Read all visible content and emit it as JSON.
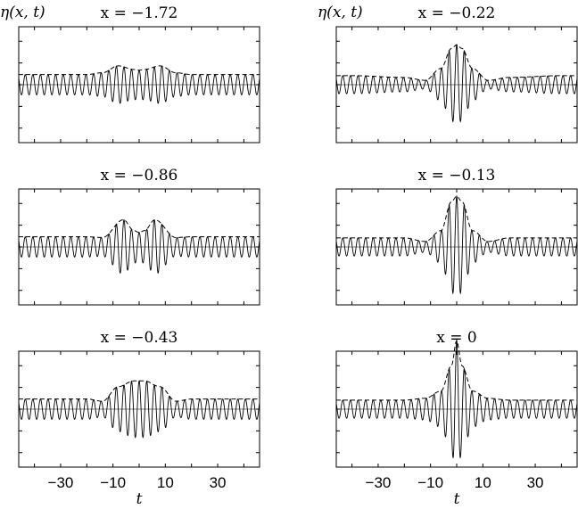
{
  "chart_data": {
    "type": "line",
    "ylabel": "η(x, t)",
    "xlabel": "t",
    "x_ticks": [
      -30,
      -10,
      10,
      30
    ],
    "xlim": [
      -46,
      46
    ],
    "ylim": [
      -1.6,
      1.6
    ],
    "series_styles": [
      "solid line: η(x, t)",
      "dashed line: envelope"
    ],
    "panels": [
      {
        "title": "x = −1.72",
        "x_value": -1.72,
        "column": "left",
        "row": 1,
        "envelope_amplitudes_at": {
          "t": [
            -40,
            -20,
            -14,
            -8,
            -2,
            0,
            2,
            8,
            14,
            20,
            40
          ],
          "env": [
            0.28,
            0.28,
            0.33,
            0.52,
            0.42,
            0.4,
            0.42,
            0.52,
            0.33,
            0.28,
            0.28
          ]
        }
      },
      {
        "title": "x = −0.22",
        "x_value": -0.22,
        "column": "right",
        "row": 1,
        "envelope_amplitudes_at": {
          "t": [
            -40,
            -20,
            -12,
            -6,
            -2,
            0,
            2,
            6,
            12,
            20,
            40
          ],
          "env": [
            0.25,
            0.2,
            0.12,
            0.45,
            1.0,
            1.1,
            1.0,
            0.45,
            0.12,
            0.2,
            0.25
          ]
        }
      },
      {
        "title": "x = −0.86",
        "x_value": -0.86,
        "column": "left",
        "row": 2,
        "envelope_amplitudes_at": {
          "t": [
            -40,
            -20,
            -14,
            -6,
            -2,
            0,
            2,
            6,
            14,
            20,
            40
          ],
          "env": [
            0.28,
            0.28,
            0.26,
            0.75,
            0.45,
            0.4,
            0.45,
            0.75,
            0.26,
            0.28,
            0.28
          ]
        }
      },
      {
        "title": "x = −0.13",
        "x_value": -0.13,
        "column": "right",
        "row": 2,
        "envelope_amplitudes_at": {
          "t": [
            -40,
            -20,
            -12,
            -6,
            -2,
            0,
            2,
            6,
            12,
            20,
            40
          ],
          "env": [
            0.25,
            0.25,
            0.15,
            0.45,
            1.25,
            1.4,
            1.25,
            0.45,
            0.15,
            0.25,
            0.25
          ]
        }
      },
      {
        "title": "x = −0.43",
        "x_value": -0.43,
        "column": "left",
        "row": 3,
        "envelope_amplitudes_at": {
          "t": [
            -40,
            -20,
            -14,
            -8,
            -2,
            0,
            2,
            8,
            14,
            20,
            40
          ],
          "env": [
            0.28,
            0.28,
            0.22,
            0.62,
            0.78,
            0.78,
            0.78,
            0.62,
            0.22,
            0.28,
            0.28
          ]
        }
      },
      {
        "title": "x = 0",
        "x_value": 0,
        "column": "right",
        "row": 3,
        "envelope_amplitudes_at": {
          "t": [
            -40,
            -20,
            -12,
            -6,
            -2,
            0,
            2,
            6,
            12,
            20,
            40
          ],
          "env": [
            0.25,
            0.25,
            0.3,
            0.5,
            1.2,
            1.9,
            1.2,
            0.5,
            0.3,
            0.25,
            0.25
          ]
        }
      }
    ]
  }
}
